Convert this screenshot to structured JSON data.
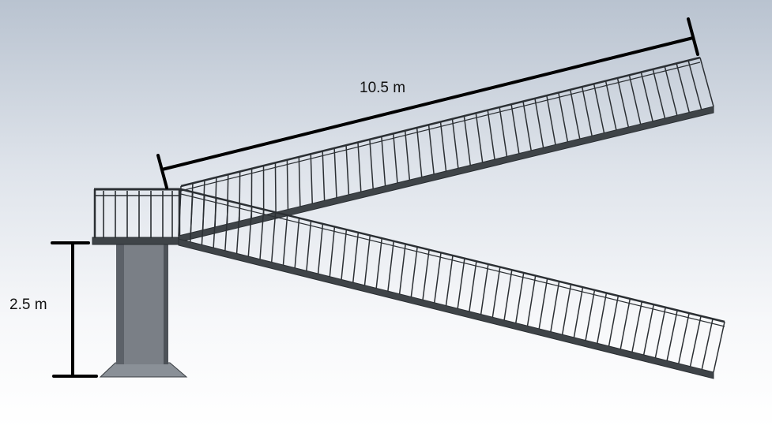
{
  "dimensions": {
    "ramp_length_label": "10.5 m",
    "tower_height_label": "2.5 m"
  },
  "colors": {
    "steel": "#3f4448",
    "rail": "#2b2f33",
    "column": "#7a7f86",
    "column_shade": "#4d5258"
  }
}
